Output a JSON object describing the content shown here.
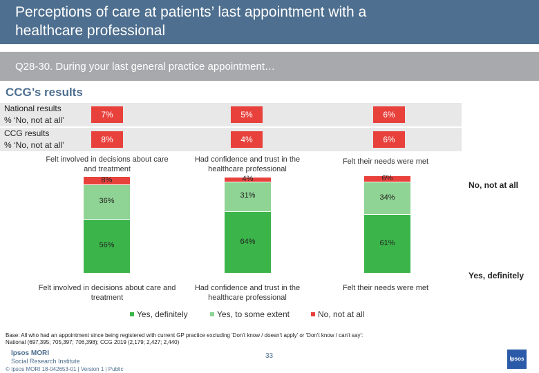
{
  "header": {
    "title_line1": "Perceptions of care at patients’ last appointment with a",
    "title_line2": "healthcare professional",
    "question": "Q28-30.  During your last general practice appointment…",
    "section": "CCG’s results"
  },
  "summary": {
    "national_line1": "National results",
    "national_line2": "% ‘No, not at all’",
    "national_values": [
      "7%",
      "5%",
      "6%"
    ],
    "ccg_line1": "CCG results",
    "ccg_line2": "% ‘No, not at all’",
    "ccg_values": [
      "8%",
      "4%",
      "6%"
    ]
  },
  "side_labels": {
    "no": "No, not at all",
    "yes": "Yes, definitely"
  },
  "chart_data": {
    "type": "bar",
    "stacked": true,
    "percent": true,
    "categories": [
      "Felt involved in decisions about care and treatment",
      "Had confidence and trust in the healthcare professional",
      "Felt their needs were met"
    ],
    "series": [
      {
        "name": "Yes, definitely",
        "values": [
          56,
          64,
          61
        ],
        "labels": [
          "56%",
          "64%",
          "61%"
        ],
        "color": "#3bb54a"
      },
      {
        "name": "Yes, to some extent",
        "values": [
          36,
          31,
          34
        ],
        "labels": [
          "36%",
          "31%",
          "34%"
        ],
        "color": "#8fd494"
      },
      {
        "name": "No, not at all",
        "values": [
          8,
          4,
          6
        ],
        "labels": [
          "8%",
          "4%",
          "6%"
        ],
        "color": "#e8413c"
      }
    ],
    "top_titles": [
      "Felt involved in decisions about care and treatment",
      "Had confidence and trust in the healthcare professional",
      "Felt their needs were met"
    ],
    "bottom_titles": [
      "Felt involved in decisions about care and treatment",
      "Had confidence and trust in the healthcare professional",
      "Felt their needs were met"
    ],
    "legend": [
      "Yes, definitely",
      "Yes, to some extent",
      "No, not at all"
    ],
    "legend_position": "bottom"
  },
  "footer": {
    "base_line1": "Base: All who had an appointment since being registered with current GP practice excluding 'Don't know / doesn't apply' or 'Don't know / can't say':",
    "base_line2": "National (697,395; 705,397; 706,398); CCG 2019 (2,179; 2,427; 2,440)",
    "logo_line1": "Ipsos MORI",
    "logo_line2": "Social Research Institute",
    "copyright": "© Ipsos MORI      18-042653-01 | Version 1 | Public",
    "page_number": "33",
    "corner_logo": "Ipsos"
  },
  "colors": {
    "title_bar": "#4e6f8f",
    "question_bar": "#a7a9ac",
    "no_not_at_all": "#e8413c",
    "yes_some_extent": "#8fd494",
    "yes_definitely": "#3bb54a"
  }
}
